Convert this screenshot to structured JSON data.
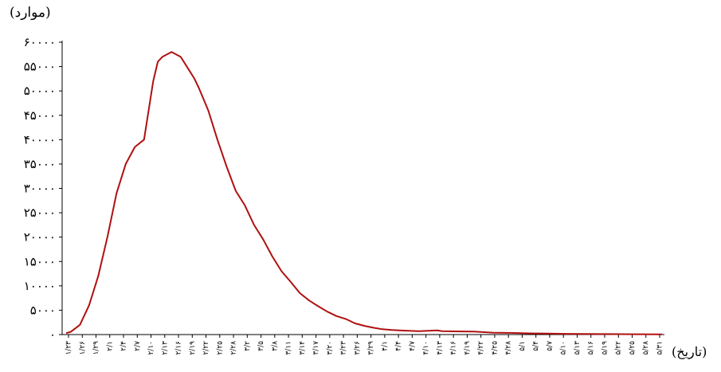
{
  "chart_data": {
    "type": "line",
    "ylabel": "(موارد)",
    "xlabel": "(تاریخ)",
    "ylim": [
      0,
      60000
    ],
    "y_ticks": [
      "۰",
      "۵۰۰۰",
      "۱۰۰۰۰",
      "۱۵۰۰۰",
      "۲۰۰۰۰",
      "۲۵۰۰۰",
      "۳۰۰۰۰",
      "۳۵۰۰۰",
      "۴۰۰۰۰",
      "۴۵۰۰۰",
      "۵۰۰۰۰",
      "۵۵۰۰۰",
      "۶۰۰۰۰"
    ],
    "x_ticks": [
      "۱/۲۳",
      "۱/۲۶",
      "۱/۲۹",
      "۲/۱",
      "۲/۴",
      "۲/۷",
      "۲/۱۰",
      "۲/۱۳",
      "۲/۱۶",
      "۲/۱۹",
      "۲/۲۲",
      "۲/۲۵",
      "۲/۲۸",
      "۳/۲",
      "۳/۵",
      "۳/۸",
      "۳/۱۱",
      "۳/۱۴",
      "۳/۱۷",
      "۳/۲۰",
      "۳/۲۳",
      "۳/۲۶",
      "۳/۲۹",
      "۴/۱",
      "۴/۴",
      "۴/۷",
      "۴/۱۰",
      "۴/۱۳",
      "۴/۱۶",
      "۴/۱۹",
      "۴/۲۲",
      "۴/۲۵",
      "۴/۲۸",
      "۵/۱",
      "۵/۴",
      "۵/۷",
      "۵/۱۰",
      "۵/۱۳",
      "۵/۱۶",
      "۵/۱۹",
      "۵/۲۲",
      "۵/۲۵",
      "۵/۲۸",
      "۵/۳۱"
    ],
    "series": [
      {
        "color": "#b01010",
        "x": [
          "1/22",
          "1/23",
          "1/25",
          "1/27",
          "1/29",
          "1/31",
          "2/2",
          "2/4",
          "2/6",
          "2/8",
          "2/10",
          "2/11",
          "2/12",
          "2/13",
          "2/14",
          "2/16",
          "2/18",
          "2/19",
          "2/20",
          "2/22",
          "2/24",
          "2/26",
          "2/28",
          "3/1",
          "3/3",
          "3/5",
          "3/7",
          "3/9",
          "3/11",
          "3/13",
          "3/15",
          "3/17",
          "3/19",
          "3/21",
          "3/23",
          "3/25",
          "3/27",
          "3/29",
          "3/31",
          "4/2",
          "4/5",
          "4/8",
          "4/12",
          "4/13",
          "4/16",
          "4/20",
          "4/24",
          "4/28",
          "5/2",
          "5/6",
          "5/10",
          "5/14",
          "5/18",
          "5/22",
          "5/26",
          "5/31"
        ],
        "values": [
          300,
          550,
          2000,
          6000,
          12000,
          20000,
          29000,
          35000,
          38500,
          40000,
          52000,
          56000,
          57000,
          57500,
          58000,
          57000,
          54000,
          52500,
          50500,
          46000,
          40000,
          34500,
          29500,
          26500,
          22500,
          19500,
          16000,
          13000,
          10800,
          8500,
          7000,
          5800,
          4700,
          3800,
          3200,
          2300,
          1800,
          1400,
          1100,
          950,
          800,
          700,
          850,
          700,
          650,
          600,
          400,
          350,
          250,
          200,
          150,
          120,
          100,
          80,
          60,
          50
        ]
      }
    ]
  }
}
